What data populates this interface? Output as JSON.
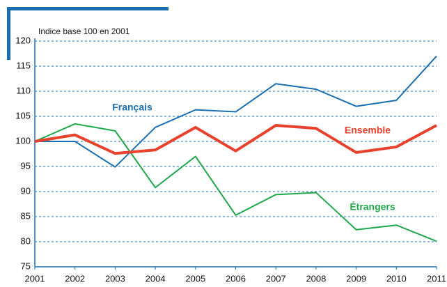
{
  "chart_data": {
    "type": "line",
    "y_axis_label": "Indice base 100 en 2001",
    "x": [
      2001,
      2002,
      2003,
      2004,
      2005,
      2006,
      2007,
      2008,
      2009,
      2010,
      2011
    ],
    "xlim": [
      2001,
      2011
    ],
    "xticks": [
      2001,
      2002,
      2003,
      2004,
      2005,
      2006,
      2007,
      2008,
      2009,
      2010,
      2011
    ],
    "ylim": [
      75,
      120
    ],
    "yticks": [
      75,
      80,
      85,
      90,
      95,
      100,
      105,
      110,
      115,
      120
    ],
    "grid": true,
    "series": [
      {
        "name": "Français",
        "color": "#1a6fb0",
        "values": [
          100,
          100,
          94.9,
          102.8,
          106.3,
          105.9,
          111.5,
          110.4,
          107,
          108.2,
          117
        ]
      },
      {
        "name": "Ensemble",
        "color": "#e8412c",
        "values": [
          100,
          101.3,
          97.6,
          98.3,
          102.8,
          98.1,
          103.2,
          102.6,
          97.8,
          98.9,
          103.2
        ]
      },
      {
        "name": "Étrangers",
        "color": "#1ea84a",
        "values": [
          100,
          103.5,
          102.1,
          90.8,
          97,
          85.3,
          89.4,
          89.8,
          82.4,
          83.3,
          80.1
        ]
      }
    ]
  }
}
